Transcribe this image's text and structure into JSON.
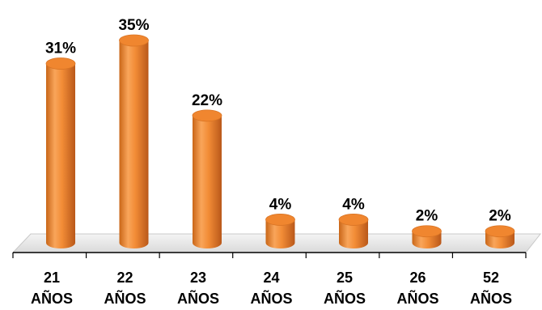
{
  "chart_data": {
    "type": "bar",
    "categories": [
      "21\nAÑOS",
      "22\nAÑOS",
      "23\nAÑOS",
      "24\nAÑOS",
      "25\nAÑOS",
      "26\nAÑOS",
      "52\nAÑOS"
    ],
    "values": [
      31,
      35,
      22,
      4,
      4,
      2,
      2
    ],
    "value_labels": [
      "31%",
      "35%",
      "22%",
      "4%",
      "4%",
      "2%",
      "2%"
    ],
    "unit": "%",
    "title": "",
    "xlabel": "",
    "ylabel": "",
    "ylim": [
      0,
      35
    ],
    "grid": false,
    "legend": "none",
    "style": "3d-cylinder",
    "colors": {
      "bar_light": "#F9A55A",
      "bar_mid": "#F0862F",
      "bar_dark": "#C25F17",
      "floor": "#E6E6E6",
      "axis": "#000000"
    }
  }
}
